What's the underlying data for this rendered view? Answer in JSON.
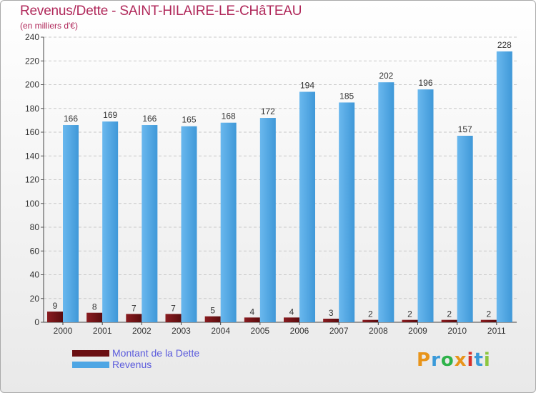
{
  "header": {
    "title": "Revenus/Dette - SAINT-HILAIRE-LE-CHâTEAU",
    "subtitle": "(en milliers d'€)"
  },
  "chart_data": {
    "type": "bar",
    "categories": [
      "2000",
      "2001",
      "2002",
      "2003",
      "2004",
      "2005",
      "2006",
      "2007",
      "2008",
      "2009",
      "2010",
      "2011"
    ],
    "series": [
      {
        "name": "Montant de la Dette",
        "color": "#6b0f12",
        "values": [
          9,
          8,
          7,
          7,
          5,
          4,
          4,
          3,
          2,
          2,
          2,
          2
        ]
      },
      {
        "name": "Revenus",
        "color": "#4ea6e4",
        "values": [
          166,
          169,
          166,
          165,
          168,
          172,
          194,
          185,
          202,
          196,
          157,
          228
        ]
      }
    ],
    "ylim": [
      0,
      240
    ],
    "yticks": [
      0,
      20,
      40,
      60,
      80,
      100,
      120,
      140,
      160,
      180,
      200,
      220,
      240
    ],
    "grid": true,
    "legend_position": "bottom-left"
  },
  "legend": {
    "items": [
      {
        "label": "Montant de la Dette",
        "color": "#6b0f12"
      },
      {
        "label": "Revenus",
        "color": "#4ea6e4"
      }
    ]
  },
  "logo": {
    "letters": [
      "P",
      "r",
      "o",
      "x",
      "i",
      "t",
      "i"
    ],
    "colors": [
      "#e8941a",
      "#3a9ad9",
      "#2fb34a",
      "#e8941a",
      "#d6312b",
      "#3a9ad9",
      "#8dc63f"
    ]
  }
}
